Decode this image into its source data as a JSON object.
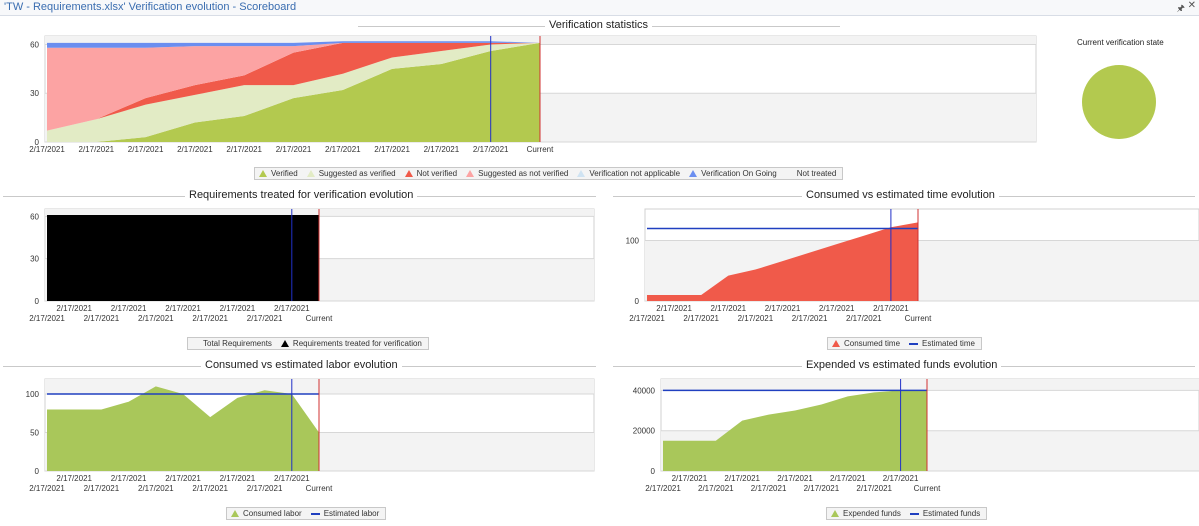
{
  "window": {
    "title": "'TW - Requirements.xlsx' Verification evolution - Scoreboard",
    "pin_icon": "pin-icon",
    "close_icon": "close-icon"
  },
  "current_state": {
    "title": "Current verification state",
    "color": "#b3c94f"
  },
  "chart_data": [
    {
      "id": "verification",
      "type": "area",
      "stacked": true,
      "title": "Verification statistics",
      "x": [
        "2/17/2021",
        "2/17/2021",
        "2/17/2021",
        "2/17/2021",
        "2/17/2021",
        "2/17/2021",
        "2/17/2021",
        "2/17/2021",
        "2/17/2021",
        "2/17/2021",
        "Current"
      ],
      "ylim": [
        0,
        60
      ],
      "yticks": [
        0,
        30,
        60
      ],
      "marker_index": 9,
      "series": [
        {
          "name": "Verified",
          "color": "#b3c94f",
          "marker": "tri",
          "values": [
            0,
            0,
            3,
            12,
            16,
            27,
            32,
            45,
            48,
            56,
            61
          ]
        },
        {
          "name": "Suggested as verified",
          "color": "#e2ebc5",
          "marker": "tri",
          "values": [
            7,
            14,
            20,
            17,
            19,
            8,
            10,
            7,
            8,
            4,
            0
          ]
        },
        {
          "name": "Not verified",
          "color": "#f05a4a",
          "marker": "tri",
          "values": [
            0,
            0,
            4,
            6,
            6,
            20,
            19,
            9,
            5,
            1,
            0
          ]
        },
        {
          "name": "Suggested as not verified",
          "color": "#fca3a3",
          "marker": "tri",
          "values": [
            51,
            44,
            31,
            24,
            18,
            4,
            0,
            0,
            0,
            0,
            0
          ]
        },
        {
          "name": "Verification not applicable",
          "color": "#cfe3f2",
          "marker": "tri",
          "values": [
            0,
            0,
            0,
            0,
            0,
            0,
            0,
            0,
            0,
            0,
            0
          ]
        },
        {
          "name": "Verification On Going",
          "color": "#6b8ef0",
          "marker": "tri",
          "values": [
            3,
            3,
            3,
            2,
            2,
            2,
            1,
            1,
            1,
            1,
            0
          ]
        },
        {
          "name": "Not treated",
          "color": "#f0f0f0",
          "marker": "none",
          "values": [
            0,
            0,
            0,
            0,
            0,
            0,
            0,
            0,
            0,
            0,
            0
          ]
        }
      ]
    },
    {
      "id": "treated",
      "type": "area",
      "stacked": false,
      "title": "Requirements treated for verification evolution",
      "x": [
        "2/17/2021",
        "2/17/2021",
        "2/17/2021",
        "2/17/2021",
        "2/17/2021",
        "2/17/2021",
        "2/17/2021",
        "2/17/2021",
        "2/17/2021",
        "2/17/2021",
        "Current"
      ],
      "ylim": [
        0,
        60
      ],
      "yticks": [
        0,
        30,
        60
      ],
      "marker_index": 9,
      "series": [
        {
          "name": "Total Requirements",
          "color": "#e8e8e8",
          "marker": "none",
          "values": [
            61,
            61,
            61,
            61,
            61,
            61,
            61,
            61,
            61,
            61,
            61
          ]
        },
        {
          "name": "Requirements treated for verification",
          "color": "#000000",
          "marker": "tri",
          "values": [
            61,
            61,
            61,
            61,
            61,
            61,
            61,
            61,
            61,
            61,
            61
          ]
        }
      ]
    },
    {
      "id": "time",
      "type": "area",
      "stacked": false,
      "title": "Consumed vs estimated time evolution",
      "x": [
        "2/17/2021",
        "2/17/2021",
        "2/17/2021",
        "2/17/2021",
        "2/17/2021",
        "2/17/2021",
        "2/17/2021",
        "2/17/2021",
        "2/17/2021",
        "2/17/2021",
        "Current"
      ],
      "ylim": [
        0,
        140
      ],
      "yticks": [
        0,
        100
      ],
      "marker_index": 9,
      "series": [
        {
          "name": "Consumed time",
          "color": "#f05a4a",
          "marker": "tri",
          "kind": "area",
          "values": [
            10,
            10,
            10,
            42,
            52,
            66,
            80,
            94,
            108,
            122,
            130
          ]
        },
        {
          "name": "Estimated time",
          "color": "#2040c0",
          "marker": "line",
          "kind": "line",
          "values": [
            120,
            120,
            120,
            120,
            120,
            120,
            120,
            120,
            120,
            120,
            120
          ]
        }
      ]
    },
    {
      "id": "labor",
      "type": "area",
      "stacked": false,
      "title": "Consumed vs estimated labor evolution",
      "x": [
        "2/17/2021",
        "2/17/2021",
        "2/17/2021",
        "2/17/2021",
        "2/17/2021",
        "2/17/2021",
        "2/17/2021",
        "2/17/2021",
        "2/17/2021",
        "2/17/2021",
        "Current"
      ],
      "ylim": [
        0,
        110
      ],
      "yticks": [
        0,
        50,
        100
      ],
      "marker_index": 9,
      "series": [
        {
          "name": "Consumed labor",
          "color": "#a9c75a",
          "marker": "tri",
          "kind": "area",
          "values": [
            80,
            80,
            80,
            90,
            110,
            100,
            70,
            95,
            105,
            100,
            50
          ]
        },
        {
          "name": "Estimated labor",
          "color": "#2040c0",
          "marker": "line",
          "kind": "line",
          "values": [
            100,
            100,
            100,
            100,
            100,
            100,
            100,
            100,
            100,
            100,
            100
          ]
        }
      ]
    },
    {
      "id": "funds",
      "type": "area",
      "stacked": false,
      "title": "Expended vs estimated funds evolution",
      "x": [
        "2/17/2021",
        "2/17/2021",
        "2/17/2021",
        "2/17/2021",
        "2/17/2021",
        "2/17/2021",
        "2/17/2021",
        "2/17/2021",
        "2/17/2021",
        "2/17/2021",
        "Current"
      ],
      "ylim": [
        0,
        42000
      ],
      "yticks": [
        0,
        20000,
        40000
      ],
      "marker_index": 9,
      "series": [
        {
          "name": "Expended funds",
          "color": "#a9c75a",
          "marker": "tri",
          "kind": "area",
          "values": [
            15000,
            15000,
            15000,
            25000,
            28000,
            30000,
            33000,
            37000,
            39000,
            40000,
            40000
          ]
        },
        {
          "name": "Estimated funds",
          "color": "#2040c0",
          "marker": "line",
          "kind": "line",
          "values": [
            40000,
            40000,
            40000,
            40000,
            40000,
            40000,
            40000,
            40000,
            40000,
            40000,
            40000
          ]
        }
      ]
    }
  ]
}
